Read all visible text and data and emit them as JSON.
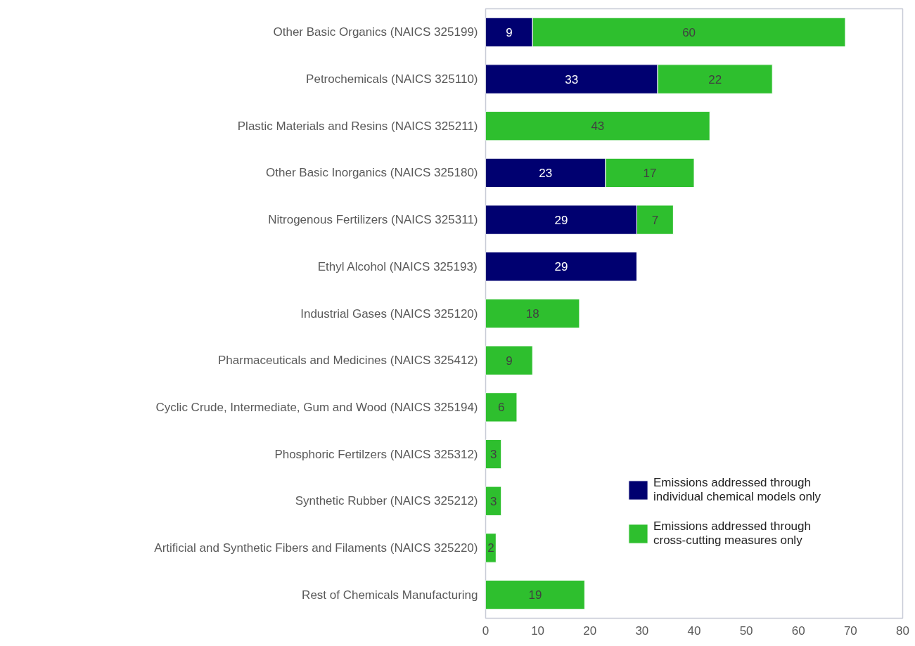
{
  "chart_data": {
    "type": "bar",
    "orientation": "horizontal",
    "stacked": true,
    "data_labels": true,
    "grid": false,
    "legend": "bottom right",
    "categories": [
      "Other Basic Organics (NAICS 325199)",
      "Petrochemicals (NAICS 325110)",
      "Plastic Materials and Resins (NAICS 325211)",
      "Other Basic Inorganics (NAICS 325180)",
      "Nitrogenous Fertilizers (NAICS 325311)",
      "Ethyl Alcohol (NAICS 325193)",
      "Industrial Gases (NAICS 325120)",
      "Pharmaceuticals and Medicines (NAICS 325412)",
      "Cyclic Crude, Intermediate, Gum and Wood (NAICS 325194)",
      "Phosphoric Fertilzers (NAICS 325312)",
      "Synthetic Rubber (NAICS 325212)",
      "Artificial and Synthetic Fibers and Filaments (NAICS 325220)",
      "Rest of Chemicals Manufacturing"
    ],
    "series": [
      {
        "name": "Emissions addressed through individual chemical models only",
        "color": "#000070",
        "values": [
          9,
          33,
          null,
          23,
          29,
          29,
          null,
          null,
          null,
          null,
          null,
          null,
          null
        ]
      },
      {
        "name": "Emissions addressed through cross-cutting measures only",
        "color": "#2ebf2e",
        "values": [
          60,
          22,
          43,
          17,
          7,
          null,
          18,
          9,
          6,
          3,
          3,
          2,
          19
        ]
      }
    ],
    "xlim": [
      0,
      80
    ],
    "xticks": [
      0,
      10,
      20,
      30,
      40,
      50,
      60,
      70,
      80
    ]
  }
}
